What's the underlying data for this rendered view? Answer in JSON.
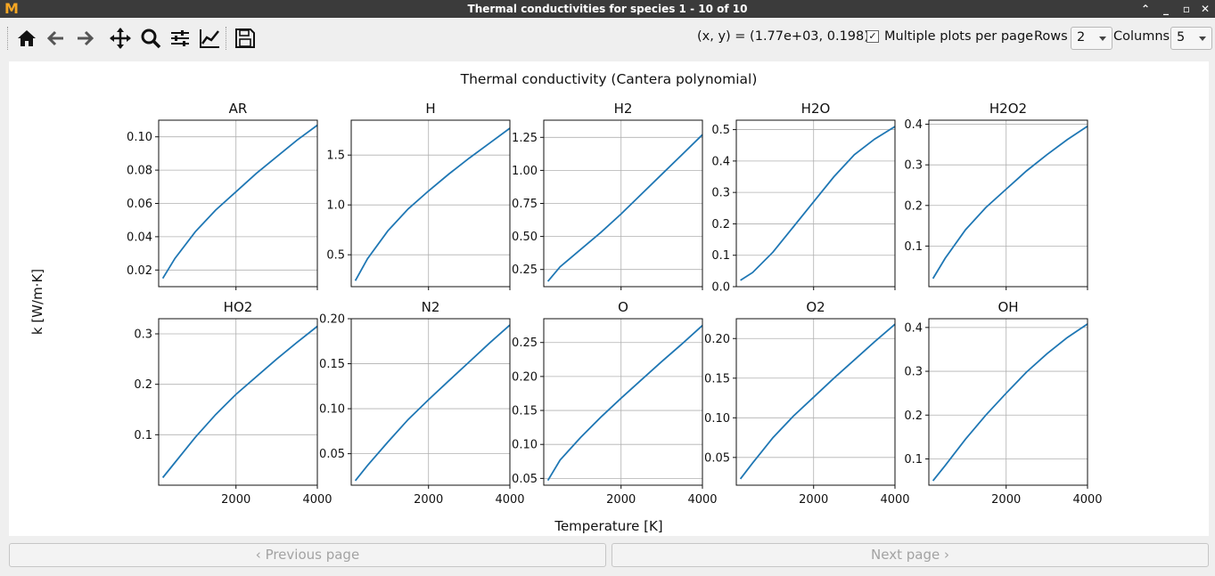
{
  "window": {
    "title": "Thermal conductivities for species 1 - 10 of 10",
    "logo_text": "M"
  },
  "toolbar": {
    "tools": [
      {
        "name": "home-icon"
      },
      {
        "name": "back-arrow-icon"
      },
      {
        "name": "forward-arrow-icon"
      },
      {
        "name": "pan-move-icon"
      },
      {
        "name": "zoom-magnifier-icon"
      },
      {
        "name": "configure-subplots-icon"
      },
      {
        "name": "edit-axes-curve-icon"
      },
      {
        "name": "save-floppy-icon"
      }
    ],
    "coordinates": "(x, y) = (1.77e+03, 0.198)",
    "multiple_plots_label": "Multiple plots per page",
    "multiple_plots_checked": true,
    "rows_label": "Rows",
    "rows_value": "2",
    "columns_label": "Columns",
    "columns_value": "5"
  },
  "figure": {
    "suptitle": "Thermal conductivity (Cantera polynomial)",
    "ylabel": "k [W/m·K]",
    "xlabel": "Temperature [K]"
  },
  "chart_data": {
    "type": "line",
    "title": "Thermal conductivity (Cantera polynomial)",
    "xlabel": "Temperature [K]",
    "ylabel": "k [W/m·K]",
    "x_range": [
      100,
      4000
    ],
    "line_color": "#1f77b4",
    "grid": true,
    "subplots": [
      {
        "title": "AR",
        "ylim": [
          0.01,
          0.11
        ],
        "yticks": [
          0.02,
          0.04,
          0.06,
          0.08,
          0.1
        ],
        "yticklabels": [
          "0.02",
          "0.04",
          "0.06",
          "0.08",
          "0.10"
        ],
        "xticklabels": [],
        "points": [
          [
            200,
            0.015
          ],
          [
            500,
            0.027
          ],
          [
            1000,
            0.043
          ],
          [
            1500,
            0.056
          ],
          [
            2000,
            0.067
          ],
          [
            2500,
            0.078
          ],
          [
            3000,
            0.088
          ],
          [
            3500,
            0.098
          ],
          [
            4000,
            0.107
          ]
        ]
      },
      {
        "title": "H",
        "ylim": [
          0.18,
          1.85
        ],
        "yticks": [
          0.5,
          1.0,
          1.5
        ],
        "yticklabels": [
          "0.5",
          "1.0",
          "1.5"
        ],
        "xticklabels": [],
        "points": [
          [
            200,
            0.24
          ],
          [
            500,
            0.46
          ],
          [
            1000,
            0.74
          ],
          [
            1500,
            0.96
          ],
          [
            2000,
            1.14
          ],
          [
            2500,
            1.31
          ],
          [
            3000,
            1.47
          ],
          [
            3500,
            1.62
          ],
          [
            4000,
            1.77
          ]
        ]
      },
      {
        "title": "H2",
        "ylim": [
          0.12,
          1.38
        ],
        "yticks": [
          0.25,
          0.5,
          0.75,
          1.0,
          1.25
        ],
        "yticklabels": [
          "0.25",
          "0.50",
          "0.75",
          "1.00",
          "1.25"
        ],
        "xticklabels": [],
        "points": [
          [
            200,
            0.16
          ],
          [
            500,
            0.27
          ],
          [
            1000,
            0.4
          ],
          [
            1500,
            0.53
          ],
          [
            2000,
            0.67
          ],
          [
            2500,
            0.82
          ],
          [
            3000,
            0.97
          ],
          [
            3500,
            1.12
          ],
          [
            4000,
            1.27
          ]
        ]
      },
      {
        "title": "H2O",
        "ylim": [
          0.0,
          0.53
        ],
        "yticks": [
          0.0,
          0.1,
          0.2,
          0.3,
          0.4,
          0.5
        ],
        "yticklabels": [
          "0.0",
          "0.1",
          "0.2",
          "0.3",
          "0.4",
          "0.5"
        ],
        "xticklabels": [],
        "points": [
          [
            200,
            0.02
          ],
          [
            500,
            0.045
          ],
          [
            1000,
            0.11
          ],
          [
            1500,
            0.19
          ],
          [
            2000,
            0.27
          ],
          [
            2500,
            0.35
          ],
          [
            3000,
            0.42
          ],
          [
            3500,
            0.47
          ],
          [
            4000,
            0.51
          ]
        ]
      },
      {
        "title": "H2O2",
        "ylim": [
          0.0,
          0.41
        ],
        "yticks": [
          0.1,
          0.2,
          0.3,
          0.4
        ],
        "yticklabels": [
          "0.1",
          "0.2",
          "0.3",
          "0.4"
        ],
        "xticklabels": [],
        "points": [
          [
            200,
            0.02
          ],
          [
            500,
            0.07
          ],
          [
            1000,
            0.14
          ],
          [
            1500,
            0.195
          ],
          [
            2000,
            0.24
          ],
          [
            2500,
            0.285
          ],
          [
            3000,
            0.325
          ],
          [
            3500,
            0.362
          ],
          [
            4000,
            0.395
          ]
        ]
      },
      {
        "title": "HO2",
        "ylim": [
          0.0,
          0.33
        ],
        "yticks": [
          0.1,
          0.2,
          0.3
        ],
        "yticklabels": [
          "0.1",
          "0.2",
          "0.3"
        ],
        "xticklabels": [
          "2000",
          "4000"
        ],
        "points": [
          [
            200,
            0.015
          ],
          [
            500,
            0.045
          ],
          [
            1000,
            0.095
          ],
          [
            1500,
            0.14
          ],
          [
            2000,
            0.18
          ],
          [
            2500,
            0.215
          ],
          [
            3000,
            0.25
          ],
          [
            3500,
            0.283
          ],
          [
            4000,
            0.315
          ]
        ]
      },
      {
        "title": "N2",
        "ylim": [
          0.015,
          0.2
        ],
        "yticks": [
          0.05,
          0.1,
          0.15,
          0.2
        ],
        "yticklabels": [
          "0.05",
          "0.10",
          "0.15",
          "0.20"
        ],
        "xticklabels": [
          "2000",
          "4000"
        ],
        "points": [
          [
            200,
            0.02
          ],
          [
            500,
            0.037
          ],
          [
            1000,
            0.063
          ],
          [
            1500,
            0.088
          ],
          [
            2000,
            0.11
          ],
          [
            2500,
            0.131
          ],
          [
            3000,
            0.152
          ],
          [
            3500,
            0.173
          ],
          [
            4000,
            0.193
          ]
        ]
      },
      {
        "title": "O",
        "ylim": [
          0.04,
          0.285
        ],
        "yticks": [
          0.05,
          0.1,
          0.15,
          0.2,
          0.25
        ],
        "yticklabels": [
          "0.05",
          "0.10",
          "0.15",
          "0.20",
          "0.25"
        ],
        "xticklabels": [
          "2000",
          "4000"
        ],
        "points": [
          [
            200,
            0.047
          ],
          [
            500,
            0.077
          ],
          [
            1000,
            0.11
          ],
          [
            1500,
            0.14
          ],
          [
            2000,
            0.168
          ],
          [
            2500,
            0.195
          ],
          [
            3000,
            0.222
          ],
          [
            3500,
            0.248
          ],
          [
            4000,
            0.275
          ]
        ]
      },
      {
        "title": "O2",
        "ylim": [
          0.015,
          0.225
        ],
        "yticks": [
          0.05,
          0.1,
          0.15,
          0.2
        ],
        "yticklabels": [
          "0.05",
          "0.10",
          "0.15",
          "0.20"
        ],
        "xticklabels": [
          "2000",
          "4000"
        ],
        "points": [
          [
            200,
            0.023
          ],
          [
            500,
            0.043
          ],
          [
            1000,
            0.075
          ],
          [
            1500,
            0.102
          ],
          [
            2000,
            0.126
          ],
          [
            2500,
            0.15
          ],
          [
            3000,
            0.173
          ],
          [
            3500,
            0.196
          ],
          [
            4000,
            0.218
          ]
        ]
      },
      {
        "title": "OH",
        "ylim": [
          0.04,
          0.42
        ],
        "yticks": [
          0.1,
          0.2,
          0.3,
          0.4
        ],
        "yticklabels": [
          "0.1",
          "0.2",
          "0.3",
          "0.4"
        ],
        "xticklabels": [
          "2000",
          "4000"
        ],
        "points": [
          [
            200,
            0.05
          ],
          [
            500,
            0.085
          ],
          [
            1000,
            0.145
          ],
          [
            1500,
            0.2
          ],
          [
            2000,
            0.25
          ],
          [
            2500,
            0.298
          ],
          [
            3000,
            0.34
          ],
          [
            3500,
            0.377
          ],
          [
            4000,
            0.408
          ]
        ]
      }
    ]
  },
  "footer": {
    "prev_label": "‹ Previous page",
    "next_label": "Next page ›"
  }
}
